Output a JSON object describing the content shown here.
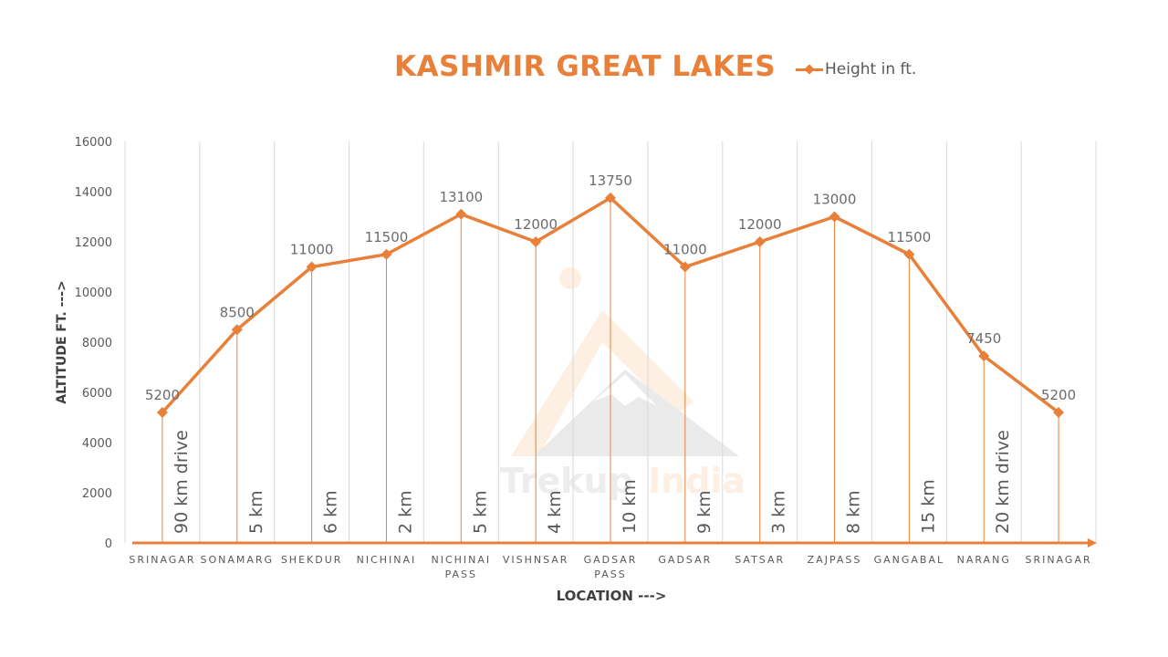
{
  "chart_data": {
    "type": "line",
    "title": "KASHMIR GREAT LAKES",
    "xlabel": "LOCATION --->",
    "ylabel": "ALTITUDE FT. --->",
    "ylim": [
      0,
      16000
    ],
    "yticks": [
      0,
      2000,
      4000,
      6000,
      8000,
      10000,
      12000,
      14000,
      16000
    ],
    "grid": "vertical",
    "legend_position": "top-right",
    "categories": [
      "SRINAGAR",
      "SONAMARG",
      "SHEKDUR",
      "NICHINAI",
      "NICHINAI PASS",
      "VISHNSAR",
      "GADSAR PASS",
      "GADSAR",
      "SATSAR",
      "ZAJPASS",
      "GANGABAL",
      "NARANG",
      "SRINAGAR"
    ],
    "series": [
      {
        "name": "Height in ft.",
        "color": "#e8803a",
        "values": [
          5200,
          8500,
          11000,
          11500,
          13100,
          12000,
          13750,
          11000,
          12000,
          13000,
          11500,
          7450,
          5200
        ]
      }
    ],
    "annotations": [
      "90 km drive",
      "5 km",
      "6 km",
      "2 km",
      "5 km",
      "4 km",
      "10 km",
      "9 km",
      "3 km",
      "8 km",
      "15 km",
      "20 km drive"
    ],
    "watermark": "Trekup India"
  },
  "title": "KASHMIR GREAT LAKES",
  "legend": {
    "label": "Height in ft."
  },
  "axes": {
    "xlabel": "LOCATION --->",
    "ylabel": "ALTITUDE FT. --->"
  },
  "colors": {
    "accent": "#e8803a",
    "grid": "#d9d9d9",
    "text": "#595959"
  }
}
